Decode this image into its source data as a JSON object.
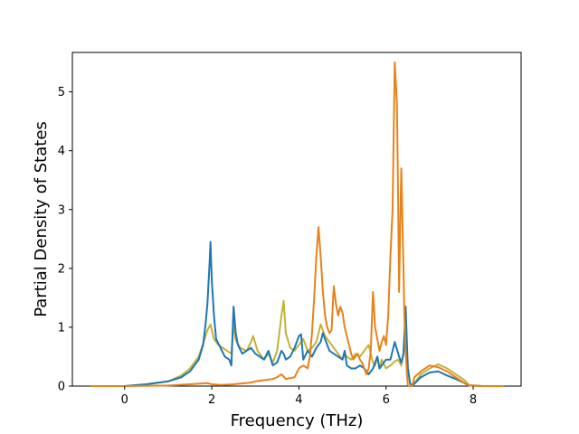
{
  "chart_data": {
    "type": "line",
    "title": "",
    "xlabel": "Frequency (THz)",
    "ylabel": "Partial Density of States",
    "xlim": [
      -1.2,
      9.1
    ],
    "ylim": [
      0,
      5.67
    ],
    "xticks": [
      0,
      2,
      4,
      6,
      8
    ],
    "yticks": [
      0,
      1,
      2,
      3,
      4,
      5
    ],
    "grid": false,
    "legend": "none",
    "series": [
      {
        "color": "#c2b23a",
        "x": [
          -0.8,
          0.0,
          0.5,
          1.0,
          1.3,
          1.5,
          1.7,
          1.8,
          1.9,
          1.97,
          2.05,
          2.15,
          2.25,
          2.35,
          2.45,
          2.5,
          2.55,
          2.65,
          2.8,
          2.9,
          2.95,
          3.05,
          3.2,
          3.3,
          3.4,
          3.5,
          3.6,
          3.65,
          3.7,
          3.8,
          3.9,
          4.0,
          4.1,
          4.2,
          4.3,
          4.4,
          4.5,
          4.55,
          4.6,
          4.7,
          4.8,
          4.9,
          5.0,
          5.05,
          5.1,
          5.2,
          5.3,
          5.4,
          5.5,
          5.6,
          5.7,
          5.75,
          5.8,
          5.85,
          5.9,
          6.0,
          6.1,
          6.2,
          6.28,
          6.35,
          6.4,
          6.45,
          6.5,
          6.55,
          6.6,
          6.65,
          6.8,
          7.0,
          7.2,
          7.4,
          7.6,
          7.8,
          7.9,
          8.2,
          8.7
        ],
        "values": [
          0.0,
          0.0,
          0.03,
          0.08,
          0.18,
          0.3,
          0.5,
          0.72,
          0.95,
          1.05,
          0.8,
          0.7,
          0.65,
          0.6,
          0.55,
          1.05,
          0.78,
          0.65,
          0.6,
          0.75,
          0.85,
          0.6,
          0.45,
          0.55,
          0.4,
          0.6,
          1.2,
          1.45,
          0.9,
          0.65,
          0.6,
          0.7,
          0.8,
          0.6,
          0.65,
          0.75,
          1.05,
          0.95,
          0.85,
          0.75,
          0.65,
          0.55,
          0.45,
          0.55,
          0.5,
          0.45,
          0.55,
          0.5,
          0.6,
          0.7,
          0.4,
          0.35,
          0.5,
          0.3,
          0.45,
          0.3,
          0.35,
          0.42,
          0.45,
          0.35,
          0.55,
          0.9,
          0.35,
          0.05,
          0.0,
          0.05,
          0.2,
          0.3,
          0.37,
          0.3,
          0.2,
          0.1,
          0.02,
          0.0,
          0.0
        ]
      },
      {
        "color": "#1f77b4",
        "x": [
          -0.8,
          0.0,
          0.5,
          1.0,
          1.3,
          1.5,
          1.7,
          1.8,
          1.85,
          1.9,
          1.95,
          1.97,
          2.0,
          2.05,
          2.1,
          2.2,
          2.3,
          2.4,
          2.45,
          2.5,
          2.55,
          2.6,
          2.7,
          2.8,
          2.9,
          3.0,
          3.1,
          3.2,
          3.3,
          3.4,
          3.5,
          3.6,
          3.65,
          3.7,
          3.8,
          3.9,
          4.0,
          4.05,
          4.1,
          4.2,
          4.3,
          4.4,
          4.5,
          4.55,
          4.6,
          4.7,
          4.8,
          4.9,
          5.0,
          5.05,
          5.1,
          5.2,
          5.3,
          5.4,
          5.5,
          5.6,
          5.7,
          5.8,
          5.85,
          5.9,
          6.0,
          6.1,
          6.2,
          6.3,
          6.35,
          6.4,
          6.45,
          6.5,
          6.55,
          6.6,
          6.65,
          6.8,
          7.0,
          7.2,
          7.4,
          7.6,
          7.8,
          7.9,
          8.2,
          8.7
        ],
        "values": [
          0.0,
          0.0,
          0.03,
          0.08,
          0.15,
          0.25,
          0.45,
          0.7,
          1.0,
          1.4,
          2.1,
          2.45,
          1.8,
          1.2,
          0.8,
          0.65,
          0.5,
          0.45,
          0.35,
          1.35,
          0.9,
          0.7,
          0.55,
          0.6,
          0.65,
          0.55,
          0.5,
          0.45,
          0.6,
          0.35,
          0.4,
          0.6,
          0.55,
          0.45,
          0.5,
          0.65,
          0.85,
          0.88,
          0.45,
          0.6,
          0.5,
          0.65,
          0.75,
          0.9,
          0.8,
          0.6,
          0.55,
          0.5,
          0.45,
          0.6,
          0.35,
          0.3,
          0.3,
          0.35,
          0.3,
          0.2,
          0.3,
          0.5,
          0.3,
          0.35,
          0.45,
          0.45,
          0.75,
          0.5,
          0.4,
          0.55,
          1.35,
          0.3,
          0.05,
          0.0,
          0.04,
          0.15,
          0.23,
          0.25,
          0.18,
          0.12,
          0.05,
          0.01,
          0.0,
          0.0
        ]
      },
      {
        "color": "#e8821a",
        "x": [
          -0.8,
          0.0,
          1.0,
          1.5,
          1.9,
          2.0,
          2.2,
          2.5,
          2.9,
          3.0,
          3.2,
          3.4,
          3.5,
          3.6,
          3.7,
          3.9,
          4.0,
          4.1,
          4.2,
          4.25,
          4.3,
          4.35,
          4.4,
          4.45,
          4.5,
          4.55,
          4.6,
          4.65,
          4.7,
          4.75,
          4.8,
          4.85,
          4.9,
          4.95,
          5.0,
          5.05,
          5.1,
          5.15,
          5.2,
          5.25,
          5.3,
          5.35,
          5.4,
          5.45,
          5.5,
          5.55,
          5.6,
          5.65,
          5.7,
          5.75,
          5.8,
          5.85,
          5.9,
          5.95,
          6.0,
          6.05,
          6.1,
          6.15,
          6.2,
          6.25,
          6.28,
          6.3,
          6.32,
          6.35,
          6.4,
          6.42,
          6.45,
          6.48,
          6.5,
          6.55,
          6.6,
          6.65,
          6.8,
          7.0,
          7.2,
          7.4,
          7.6,
          7.8,
          7.9,
          8.2,
          8.7
        ],
        "values": [
          0.0,
          0.0,
          0.01,
          0.03,
          0.05,
          0.03,
          0.02,
          0.03,
          0.06,
          0.08,
          0.1,
          0.12,
          0.15,
          0.2,
          0.12,
          0.15,
          0.3,
          0.35,
          0.3,
          0.5,
          0.9,
          1.5,
          2.2,
          2.7,
          2.2,
          1.6,
          1.2,
          1.0,
          0.9,
          0.95,
          1.7,
          1.4,
          1.2,
          1.35,
          1.25,
          1.0,
          0.85,
          0.7,
          0.55,
          0.45,
          0.5,
          0.55,
          0.45,
          0.4,
          0.3,
          0.2,
          0.3,
          0.6,
          1.6,
          1.0,
          0.8,
          0.6,
          0.75,
          0.85,
          0.7,
          1.2,
          2.2,
          3.0,
          5.5,
          4.8,
          3.0,
          1.6,
          2.5,
          3.7,
          2.0,
          1.2,
          0.6,
          0.2,
          0.02,
          0.0,
          0.0,
          0.15,
          0.25,
          0.35,
          0.32,
          0.25,
          0.15,
          0.05,
          0.01,
          0.0,
          0.0
        ]
      }
    ]
  }
}
